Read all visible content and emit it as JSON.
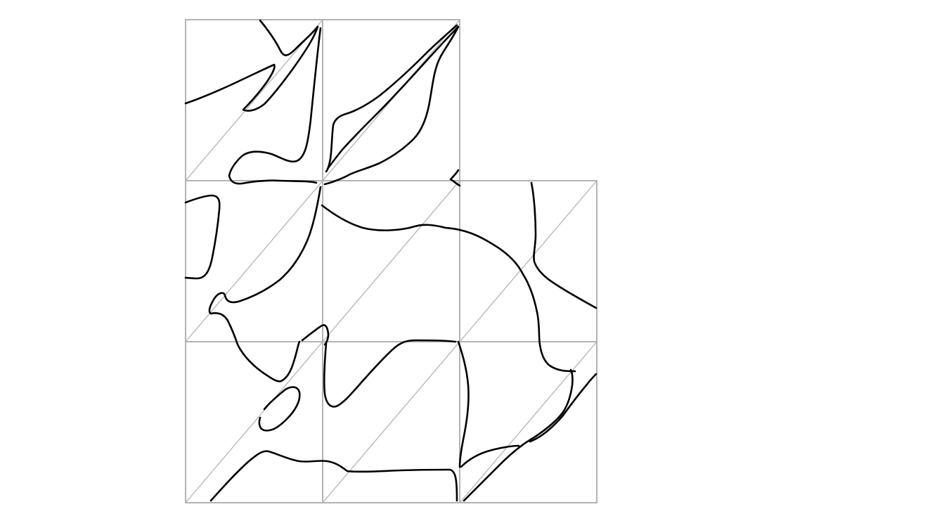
{
  "figure": {
    "colors": {
      "background": "#ffffff",
      "grid": "#b3b3b3",
      "curve": "#000000"
    },
    "cells": [
      {
        "row": 0,
        "col": 0
      },
      {
        "row": 0,
        "col": 1
      },
      {
        "row": 1,
        "col": 0
      },
      {
        "row": 1,
        "col": 1
      },
      {
        "row": 1,
        "col": 2
      },
      {
        "row": 2,
        "col": 0
      },
      {
        "row": 2,
        "col": 1
      },
      {
        "row": 2,
        "col": 2
      }
    ]
  }
}
